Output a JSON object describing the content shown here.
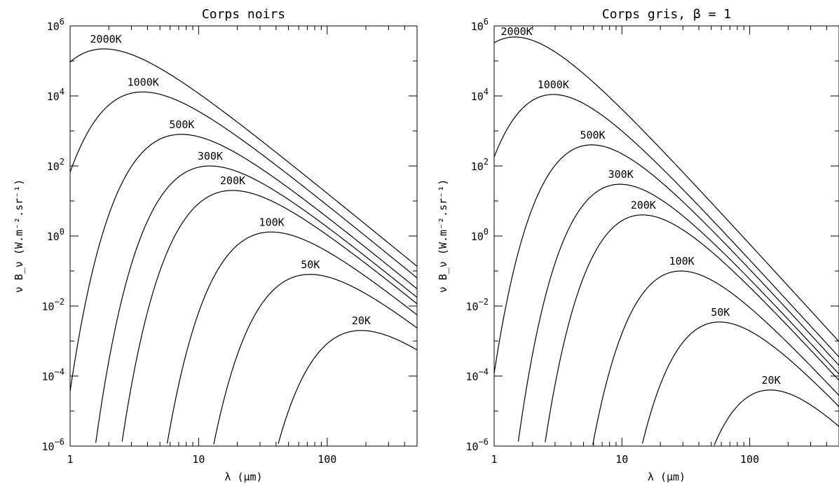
{
  "chart_data": [
    {
      "type": "line",
      "title": "Corps noirs",
      "xlabel": "λ (μm)",
      "ylabel": "ν B_ν (W.m⁻².sr⁻¹)",
      "xscale": "log",
      "yscale": "log",
      "xlim": [
        1,
        500
      ],
      "ylim": [
        1e-06,
        1000000.0
      ],
      "x_tick_labels": [
        "1",
        "10",
        "100"
      ],
      "y_tick_labels": [
        {
          "base": "10",
          "exp": "−6"
        },
        {
          "base": "10",
          "exp": "−4"
        },
        {
          "base": "10",
          "exp": "−2"
        },
        {
          "base": "10",
          "exp": "0"
        },
        {
          "base": "10",
          "exp": "2"
        },
        {
          "base": "10",
          "exp": "4"
        },
        {
          "base": "10",
          "exp": "6"
        }
      ],
      "beta": 0,
      "series": [
        {
          "name": "2000K",
          "temperature_K": 2000,
          "peak": {
            "x": 1.9,
            "y": 220000
          }
        },
        {
          "name": "1000K",
          "temperature_K": 1000,
          "peak": {
            "x": 3.7,
            "y": 13000
          }
        },
        {
          "name": "500K",
          "temperature_K": 500,
          "peak": {
            "x": 7.4,
            "y": 800
          }
        },
        {
          "name": "300K",
          "temperature_K": 300,
          "peak": {
            "x": 12.3,
            "y": 100
          }
        },
        {
          "name": "200K",
          "temperature_K": 200,
          "peak": {
            "x": 18.4,
            "y": 20
          }
        },
        {
          "name": "100K",
          "temperature_K": 100,
          "peak": {
            "x": 37,
            "y": 1.3
          }
        },
        {
          "name": "50K",
          "temperature_K": 50,
          "peak": {
            "x": 74,
            "y": 0.08
          }
        },
        {
          "name": "20K",
          "temperature_K": 20,
          "peak": {
            "x": 184,
            "y": 0.002
          }
        }
      ]
    },
    {
      "type": "line",
      "title": "Corps gris, β = 1",
      "xlabel": "λ (μm)",
      "ylabel": "ν B_ν (W.m⁻².sr⁻¹)",
      "xscale": "log",
      "yscale": "log",
      "xlim": [
        1,
        500
      ],
      "ylim": [
        1e-06,
        1000000.0
      ],
      "x_tick_labels": [
        "1",
        "10",
        "100"
      ],
      "y_tick_labels": [
        {
          "base": "10",
          "exp": "−6"
        },
        {
          "base": "10",
          "exp": "−4"
        },
        {
          "base": "10",
          "exp": "−2"
        },
        {
          "base": "10",
          "exp": "0"
        },
        {
          "base": "10",
          "exp": "2"
        },
        {
          "base": "10",
          "exp": "4"
        },
        {
          "base": "10",
          "exp": "6"
        }
      ],
      "beta": 1,
      "series": [
        {
          "name": "2000K",
          "temperature_K": 2000,
          "peak": {
            "x": 1.5,
            "y": 480000
          }
        },
        {
          "name": "1000K",
          "temperature_K": 1000,
          "peak": {
            "x": 2.9,
            "y": 11000
          }
        },
        {
          "name": "500K",
          "temperature_K": 500,
          "peak": {
            "x": 5.9,
            "y": 400
          }
        },
        {
          "name": "300K",
          "temperature_K": 300,
          "peak": {
            "x": 9.8,
            "y": 30
          }
        },
        {
          "name": "200K",
          "temperature_K": 200,
          "peak": {
            "x": 14.7,
            "y": 4
          }
        },
        {
          "name": "100K",
          "temperature_K": 100,
          "peak": {
            "x": 29.4,
            "y": 0.1
          }
        },
        {
          "name": "50K",
          "temperature_K": 50,
          "peak": {
            "x": 59,
            "y": 0.0035
          }
        },
        {
          "name": "20K",
          "temperature_K": 20,
          "peak": {
            "x": 147,
            "y": 4e-05
          }
        }
      ]
    }
  ]
}
